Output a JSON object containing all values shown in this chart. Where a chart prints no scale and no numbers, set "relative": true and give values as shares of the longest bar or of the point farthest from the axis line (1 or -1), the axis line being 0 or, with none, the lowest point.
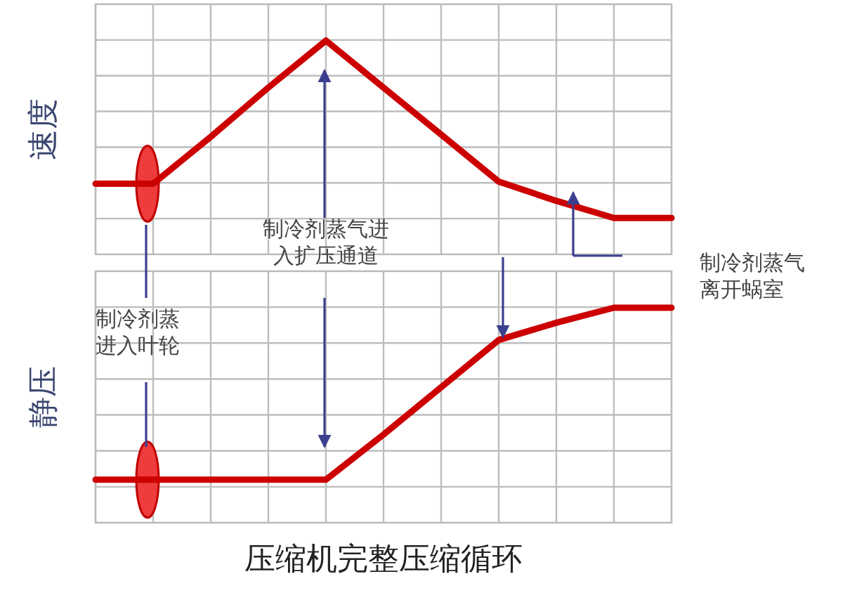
{
  "chart_data": [
    {
      "type": "line",
      "relative": true,
      "grid": true,
      "ylabel": "速度",
      "categories": [
        null,
        null,
        null,
        null,
        null,
        null,
        null,
        null,
        null,
        null,
        null
      ],
      "series": [
        {
          "color": "#cc0000",
          "values": [
            0.33,
            0.33,
            0.55,
            0.78,
            1,
            0.78,
            0.56,
            0.34,
            0.25,
            0.17,
            0.17
          ]
        }
      ],
      "annotations": [
        "制冷剂蒸气进入扩压通道",
        "制冷剂蒸气离开蜗室"
      ]
    },
    {
      "type": "line",
      "relative": true,
      "grid": true,
      "ylabel": "静压",
      "xlabel": "压缩机完整压缩循环",
      "categories": [
        null,
        null,
        null,
        null,
        null,
        null,
        null,
        null,
        null,
        null,
        null
      ],
      "series": [
        {
          "color": "#cc0000",
          "values": [
            0.2,
            0.2,
            0.2,
            0.2,
            0.2,
            0.41,
            0.63,
            0.85,
            0.93,
            1,
            1
          ]
        }
      ],
      "annotations": [
        "制冷剂蒸进入叶轮"
      ]
    }
  ]
}
